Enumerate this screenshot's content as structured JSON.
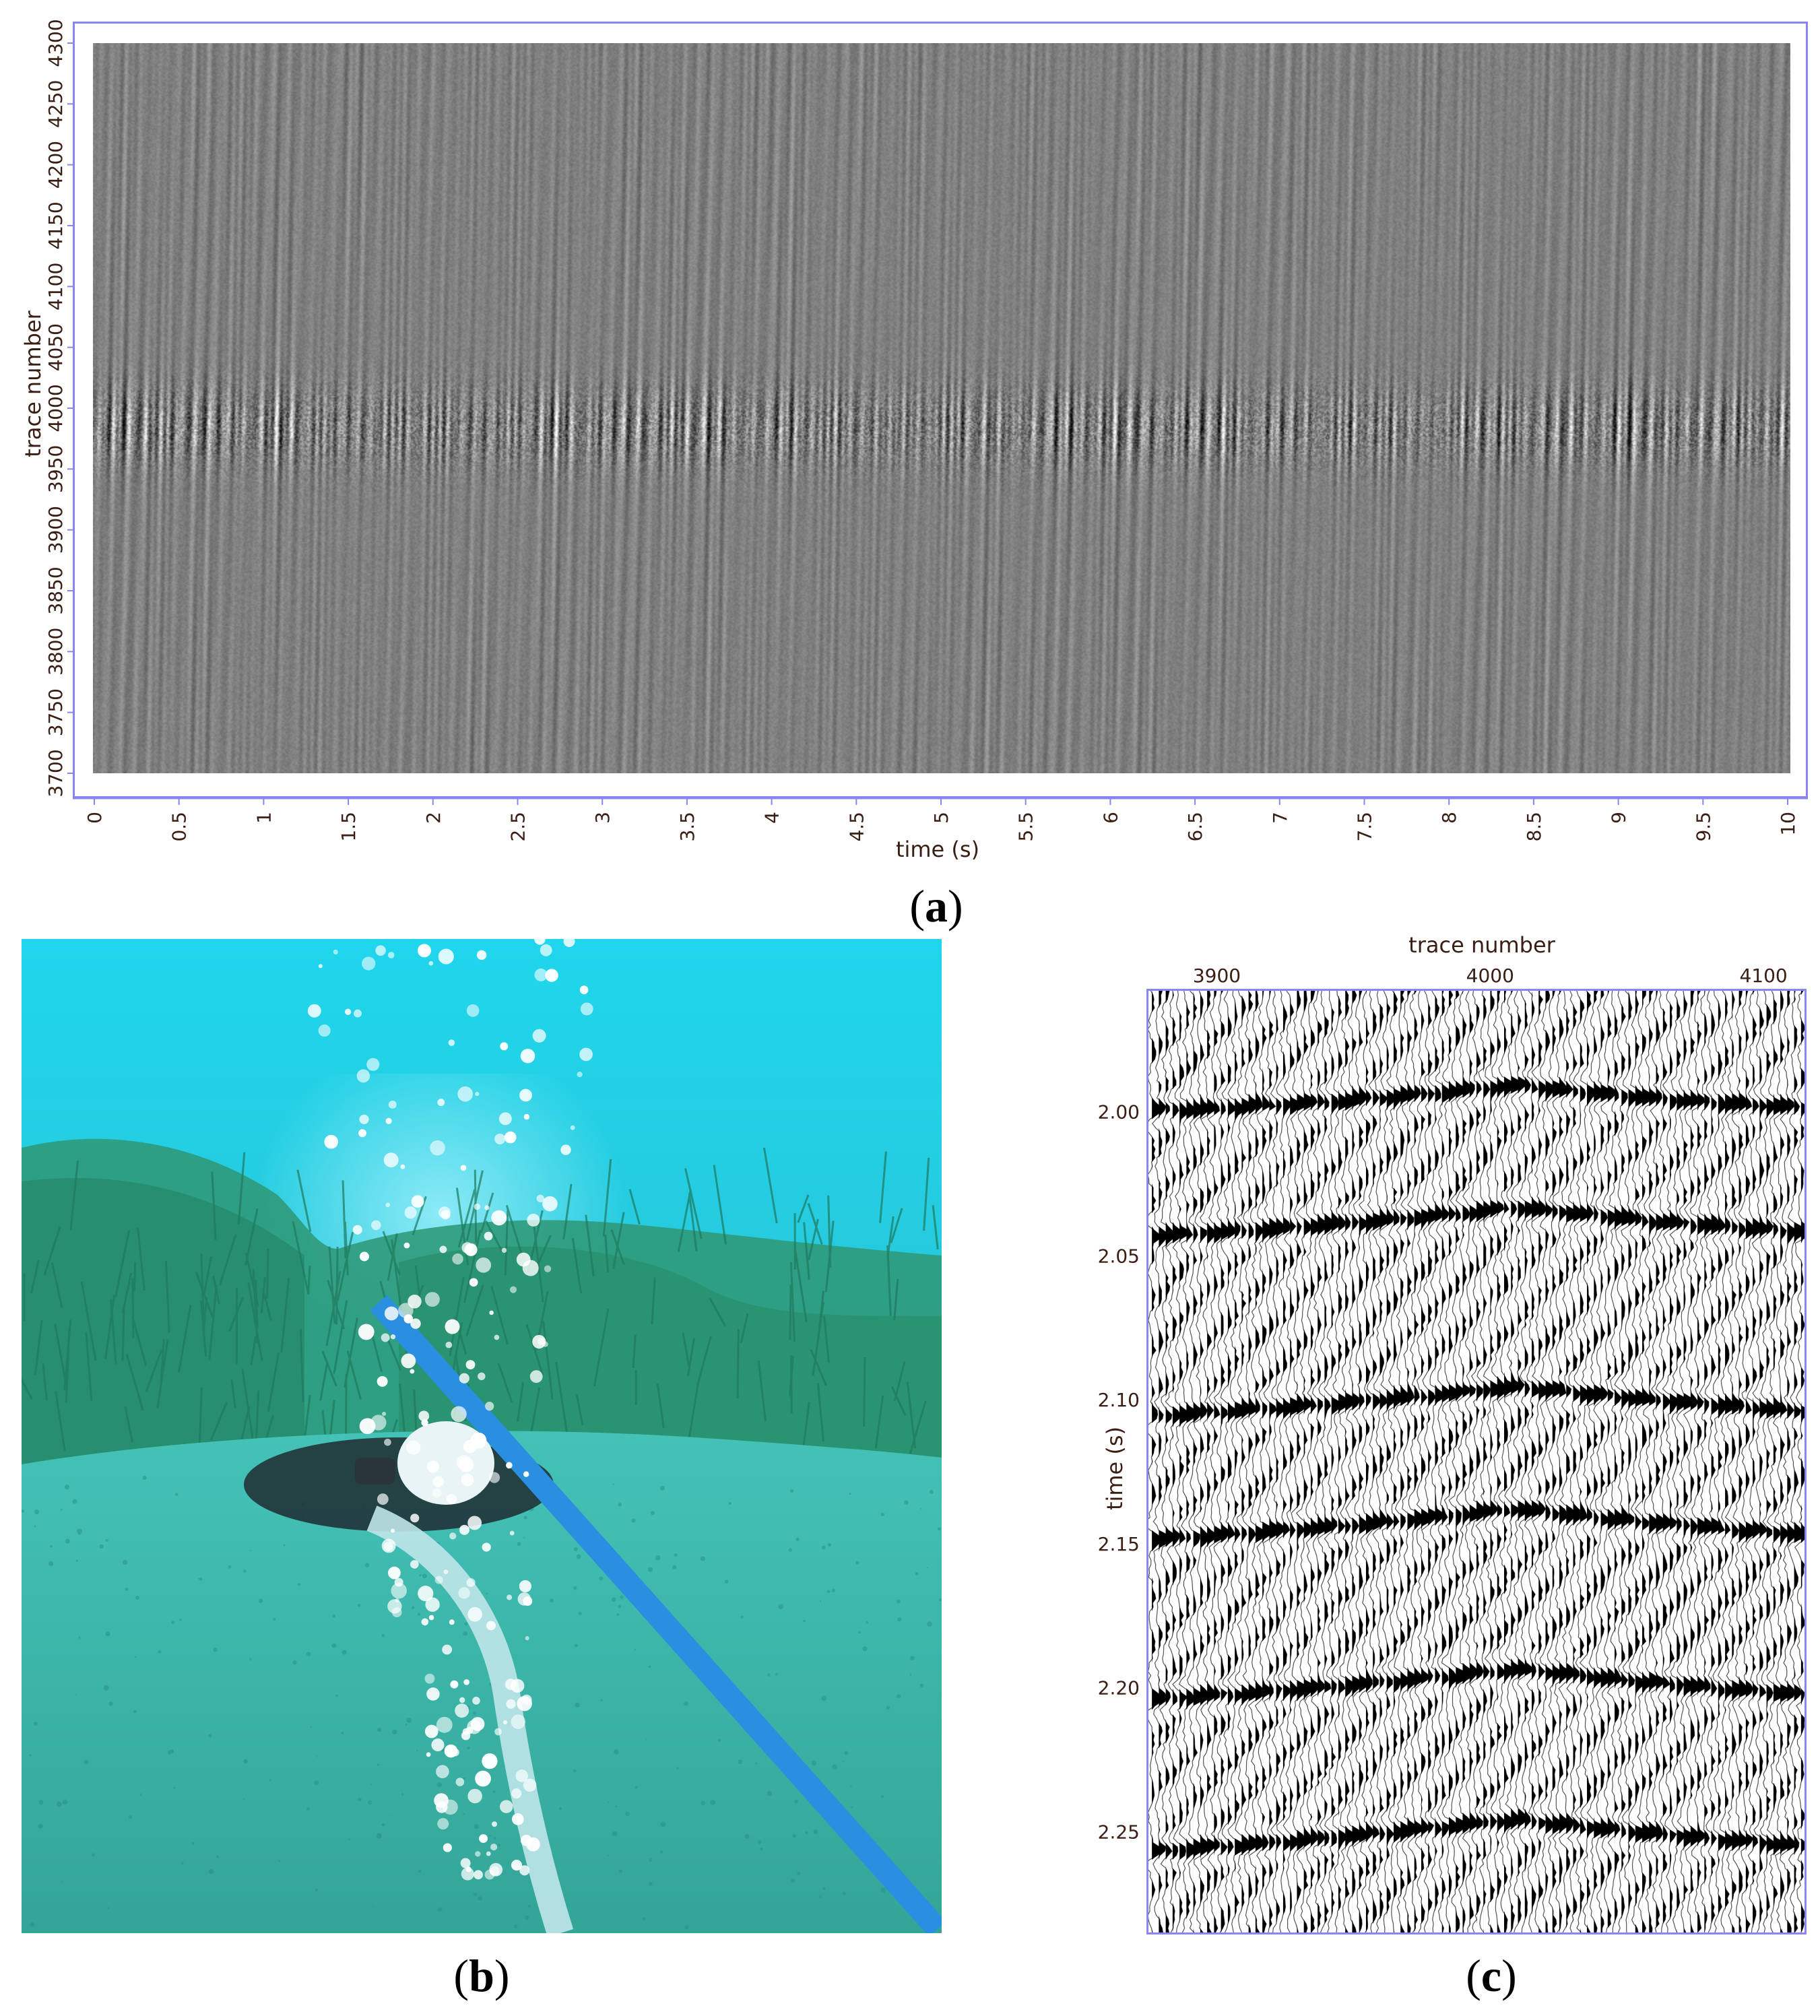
{
  "chart_data": [
    {
      "panel": "a",
      "type": "heatmap",
      "xlabel": "time (s)",
      "ylabel": "trace number",
      "xlim": [
        0,
        10
      ],
      "ylim": [
        3700,
        4300
      ],
      "xticks": [
        "0",
        "0.5",
        "1",
        "1.5",
        "2",
        "2.5",
        "3",
        "3.5",
        "4",
        "4.5",
        "5",
        "5.5",
        "6",
        "6.5",
        "7",
        "7.5",
        "8",
        "8.5",
        "9",
        "9.5",
        "10"
      ],
      "yticks": [
        "3700",
        "3750",
        "3800",
        "3850",
        "3900",
        "3950",
        "4000",
        "4050",
        "4100",
        "4150",
        "4200",
        "4250",
        "4300"
      ],
      "colormap": "grayscale",
      "strong_band_traces": [
        3950,
        4020
      ],
      "grid": false
    },
    {
      "panel": "c",
      "type": "line",
      "xlabel": "trace number",
      "ylabel": "time (s)",
      "xlim": [
        3875,
        4115
      ],
      "ylim": [
        2.285,
        1.958
      ],
      "xticks": [
        "3900",
        "4000",
        "4100"
      ],
      "yticks": [
        "2.00",
        "2.05",
        "2.10",
        "2.15",
        "2.20",
        "2.25"
      ],
      "display": "wiggle-variable-area",
      "grid": false
    }
  ],
  "photo": {
    "panel": "b",
    "subject": "underwater-airgun-source-photo"
  },
  "captions": {
    "a": "a",
    "b": "b",
    "c": "c"
  },
  "colors": {
    "frame": "#8a85f0",
    "axis_text": "#3a1e14",
    "water_top": "#1fd6ec",
    "water_bottom": "#3fc0bc",
    "hose": "#2a8fe0"
  }
}
